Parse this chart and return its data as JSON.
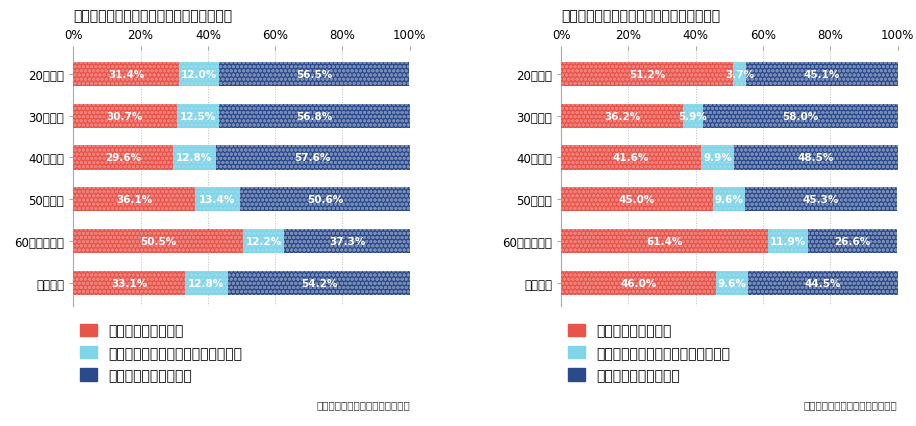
{
  "female": {
    "title": "ウォーキングの実施状況について（女性）",
    "categories": [
      "20代女性",
      "30代女性",
      "40代女性",
      "50代女性",
      "60代以上女性",
      "女性全体"
    ],
    "values1": [
      31.4,
      30.7,
      29.6,
      36.1,
      50.5,
      33.1
    ],
    "values2": [
      12.0,
      12.5,
      12.8,
      13.4,
      12.2,
      12.8
    ],
    "values3": [
      56.5,
      56.8,
      57.6,
      50.6,
      37.3,
      54.2
    ]
  },
  "male": {
    "title": "ウォーキングの実施状況について（男性）",
    "categories": [
      "20代男性",
      "30代男性",
      "40代男性",
      "50代男性",
      "60代以上男性",
      "男性全体"
    ],
    "values1": [
      51.2,
      36.2,
      41.6,
      45.0,
      61.4,
      46.0
    ],
    "values2": [
      3.7,
      5.9,
      9.9,
      9.6,
      11.9,
      9.6
    ],
    "values3": [
      45.1,
      58.0,
      48.5,
      45.3,
      26.6,
      44.5
    ]
  },
  "color1": "#e8534a",
  "color2": "#7fd4e8",
  "color3": "#2b4a8c",
  "legend1": "定期的に行っている",
  "legend2": "以前は行っていたが今はしていない",
  "legend3": "ほとんど行っていない",
  "credit": "ソフトブレーン・フィールド調べ",
  "bar_text_color": "#ffffff",
  "bar_fontsize": 7.5,
  "label_fontsize": 8.5,
  "title_fontsize": 10,
  "legend_fontsize": 8,
  "credit_fontsize": 7.5
}
